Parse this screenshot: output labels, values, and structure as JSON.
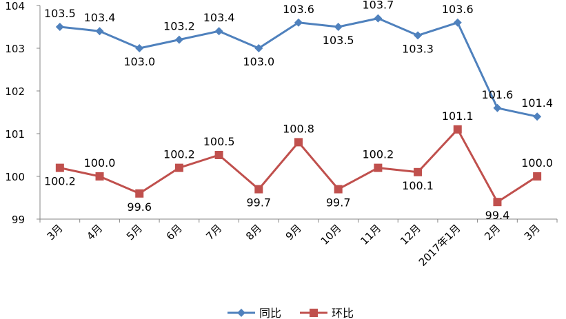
{
  "chart_data": {
    "type": "line",
    "categories": [
      "3月",
      "4月",
      "5月",
      "6月",
      "7月",
      "8月",
      "9月",
      "10月",
      "11月",
      "12月",
      "2017年1月",
      "2月",
      "3月"
    ],
    "ylim": [
      99,
      104
    ],
    "yticks": [
      "99",
      "100",
      "101",
      "102",
      "103",
      "104"
    ],
    "grid": false,
    "legend_position": "bottom",
    "series": [
      {
        "name": "同比",
        "color": "#4F81BD",
        "marker": "diamond",
        "values": [
          103.5,
          103.4,
          103.0,
          103.2,
          103.4,
          103.0,
          103.6,
          103.5,
          103.7,
          103.3,
          103.6,
          101.6,
          101.4
        ],
        "labels": [
          "103.5",
          "103.4",
          "103.0",
          "103.2",
          "103.4",
          "103.0",
          "103.6",
          "103.5",
          "103.7",
          "103.3",
          "103.6",
          "101.6",
          "101.4"
        ]
      },
      {
        "name": "环比",
        "color": "#C0504D",
        "marker": "square",
        "values": [
          100.2,
          100.0,
          99.6,
          100.2,
          100.5,
          99.7,
          100.8,
          99.7,
          100.2,
          100.1,
          101.1,
          99.4,
          100.0
        ],
        "labels": [
          "100.2",
          "100.0",
          "99.6",
          "100.2",
          "100.5",
          "99.7",
          "100.8",
          "99.7",
          "100.2",
          "100.1",
          "101.1",
          "99.4",
          "100.0"
        ]
      }
    ]
  }
}
